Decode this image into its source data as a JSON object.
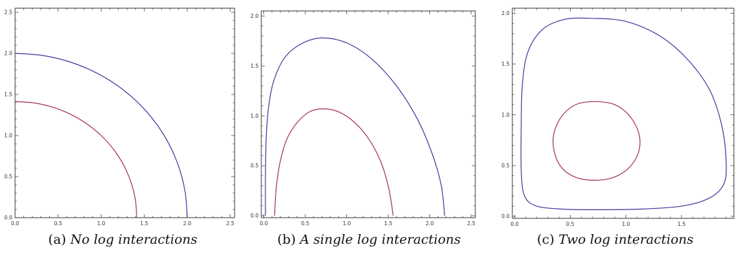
{
  "chart_data": [
    {
      "type": "line",
      "caption_label": "(a)",
      "caption_text": "No log interactions",
      "xlim": [
        0,
        2.55
      ],
      "ylim": [
        0,
        2.55
      ],
      "x_ticks": [
        0.0,
        0.5,
        1.0,
        1.5,
        2.0,
        2.5
      ],
      "y_ticks": [
        0.0,
        0.5,
        1.0,
        1.5,
        2.0,
        2.5
      ],
      "tick_labels_x": [
        "0.0",
        "0.5",
        "1.0",
        "1.5",
        "2.0",
        "2.5"
      ],
      "tick_labels_y": [
        "0.0",
        "0.5",
        "1.0",
        "1.5",
        "2.0",
        "2.5"
      ],
      "grid": false,
      "series": [
        {
          "color": "#3b3b9e",
          "points": [
            [
              0,
              2.0
            ],
            [
              0.312,
              1.976
            ],
            [
              0.618,
              1.902
            ],
            [
              0.908,
              1.782
            ],
            [
              1.176,
              1.618
            ],
            [
              1.414,
              1.414
            ],
            [
              1.618,
              1.176
            ],
            [
              1.782,
              0.908
            ],
            [
              1.902,
              0.618
            ],
            [
              1.976,
              0.312
            ],
            [
              2.0,
              0.0
            ]
          ]
        },
        {
          "color": "#a43060",
          "points": [
            [
              0,
              1.414
            ],
            [
              0.221,
              1.397
            ],
            [
              0.437,
              1.345
            ],
            [
              0.642,
              1.26
            ],
            [
              0.831,
              1.144
            ],
            [
              1.0,
              1.0
            ],
            [
              1.144,
              0.831
            ],
            [
              1.26,
              0.642
            ],
            [
              1.345,
              0.437
            ],
            [
              1.397,
              0.221
            ],
            [
              1.414,
              0.0
            ]
          ]
        }
      ]
    },
    {
      "type": "line",
      "caption_label": "(b)",
      "caption_text": "A single log interactions",
      "xlim": [
        -0.03,
        2.55
      ],
      "ylim": [
        -0.02,
        2.05
      ],
      "x_ticks": [
        0.0,
        0.5,
        1.0,
        1.5,
        2.0,
        2.5
      ],
      "y_ticks": [
        0.0,
        0.5,
        1.0,
        1.5,
        2.0
      ],
      "tick_labels_x": [
        "0.0",
        "0.5",
        "1.0",
        "1.5",
        "2.0",
        "2.5"
      ],
      "tick_labels_y": [
        "0.0",
        "0.5",
        "1.0",
        "1.5",
        "2.0"
      ],
      "grid": false,
      "series": [
        {
          "color": "#3b3b9e",
          "points": [
            [
              0.02,
              0.0
            ],
            [
              0.02,
              0.4
            ],
            [
              0.03,
              0.8
            ],
            [
              0.06,
              1.1
            ],
            [
              0.12,
              1.35
            ],
            [
              0.25,
              1.58
            ],
            [
              0.45,
              1.72
            ],
            [
              0.7,
              1.78
            ],
            [
              1.0,
              1.73
            ],
            [
              1.3,
              1.57
            ],
            [
              1.6,
              1.3
            ],
            [
              1.85,
              0.97
            ],
            [
              2.03,
              0.62
            ],
            [
              2.14,
              0.3
            ],
            [
              2.18,
              0.0
            ]
          ]
        },
        {
          "color": "#a43060",
          "points": [
            [
              0.13,
              0.0
            ],
            [
              0.15,
              0.28
            ],
            [
              0.2,
              0.55
            ],
            [
              0.28,
              0.77
            ],
            [
              0.4,
              0.93
            ],
            [
              0.55,
              1.04
            ],
            [
              0.72,
              1.07
            ],
            [
              0.9,
              1.04
            ],
            [
              1.1,
              0.93
            ],
            [
              1.28,
              0.75
            ],
            [
              1.42,
              0.52
            ],
            [
              1.51,
              0.26
            ],
            [
              1.56,
              0.0
            ]
          ]
        }
      ]
    },
    {
      "type": "line",
      "caption_label": "(c)",
      "caption_text": "Two log interactions",
      "xlim": [
        -0.02,
        1.97
      ],
      "ylim": [
        -0.02,
        2.05
      ],
      "x_ticks": [
        0.0,
        0.5,
        1.0,
        1.5
      ],
      "y_ticks": [
        0.0,
        0.5,
        1.0,
        1.5,
        2.0
      ],
      "tick_labels_x": [
        "0.0",
        "0.5",
        "1.0",
        "1.5"
      ],
      "tick_labels_y": [
        "0.0",
        "0.5",
        "1.0",
        "1.5",
        "2.0"
      ],
      "grid": false,
      "series": [
        {
          "color": "#3b3b9e",
          "closed": true,
          "points": [
            [
              0.7,
              1.95
            ],
            [
              0.45,
              1.94
            ],
            [
              0.25,
              1.84
            ],
            [
              0.12,
              1.62
            ],
            [
              0.07,
              1.3
            ],
            [
              0.06,
              0.9
            ],
            [
              0.06,
              0.45
            ],
            [
              0.09,
              0.2
            ],
            [
              0.2,
              0.1
            ],
            [
              0.45,
              0.07
            ],
            [
              0.7,
              0.065
            ],
            [
              1.1,
              0.07
            ],
            [
              1.5,
              0.1
            ],
            [
              1.75,
              0.18
            ],
            [
              1.88,
              0.32
            ],
            [
              1.9,
              0.55
            ],
            [
              1.86,
              0.9
            ],
            [
              1.75,
              1.25
            ],
            [
              1.55,
              1.55
            ],
            [
              1.3,
              1.78
            ],
            [
              1.0,
              1.92
            ]
          ]
        },
        {
          "color": "#a43060",
          "closed": true,
          "points": [
            [
              0.72,
              1.13
            ],
            [
              0.9,
              1.1
            ],
            [
              1.04,
              0.98
            ],
            [
              1.12,
              0.8
            ],
            [
              1.11,
              0.62
            ],
            [
              1.02,
              0.47
            ],
            [
              0.88,
              0.38
            ],
            [
              0.72,
              0.355
            ],
            [
              0.56,
              0.38
            ],
            [
              0.43,
              0.47
            ],
            [
              0.36,
              0.62
            ],
            [
              0.35,
              0.8
            ],
            [
              0.42,
              0.98
            ],
            [
              0.55,
              1.1
            ]
          ]
        }
      ]
    }
  ]
}
